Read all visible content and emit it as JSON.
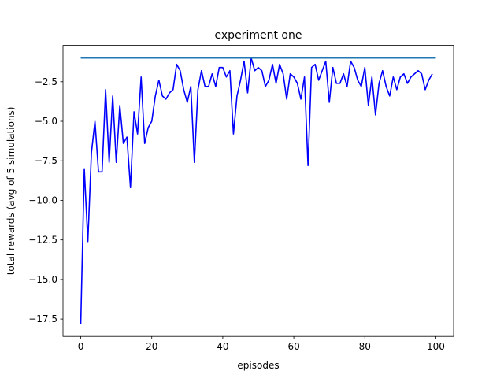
{
  "chart_data": {
    "type": "line",
    "title": "experiment one",
    "xlabel": "episodes",
    "ylabel": "total rewards (avg of 5 simulations)",
    "xlim": [
      -5,
      105
    ],
    "ylim": [
      -18.6,
      -0.2
    ],
    "xticks": [
      0,
      20,
      40,
      60,
      80,
      100
    ],
    "yticks": [
      -17.5,
      -15.0,
      -12.5,
      -10.0,
      -7.5,
      -5.0,
      -2.5
    ],
    "xtick_labels": [
      "0",
      "20",
      "40",
      "60",
      "80",
      "100"
    ],
    "ytick_labels": [
      "−17.5",
      "−15.0",
      "−12.5",
      "−10.0",
      "−7.5",
      "−5.0",
      "−2.5"
    ],
    "grid": false,
    "series": [
      {
        "color": "#0000ff",
        "x": [
          0,
          1,
          2,
          3,
          4,
          5,
          6,
          7,
          8,
          9,
          10,
          11,
          12,
          13,
          14,
          15,
          16,
          17,
          18,
          19,
          20,
          21,
          22,
          23,
          24,
          25,
          26,
          27,
          28,
          29,
          30,
          31,
          32,
          33,
          34,
          35,
          36,
          37,
          38,
          39,
          40,
          41,
          42,
          43,
          44,
          45,
          46,
          47,
          48,
          49,
          50,
          51,
          52,
          53,
          54,
          55,
          56,
          57,
          58,
          59,
          60,
          61,
          62,
          63,
          64,
          65,
          66,
          67,
          68,
          69,
          70,
          71,
          72,
          73,
          74,
          75,
          76,
          77,
          78,
          79,
          80,
          81,
          82,
          83,
          84,
          85,
          86,
          87,
          88,
          89,
          90,
          91,
          92,
          93,
          94,
          95,
          96,
          97,
          98,
          99
        ],
        "y": [
          -17.8,
          -8.0,
          -12.6,
          -7.0,
          -5.0,
          -8.2,
          -8.2,
          -3.0,
          -7.6,
          -3.4,
          -7.6,
          -4.0,
          -6.4,
          -6.0,
          -9.2,
          -4.4,
          -5.8,
          -2.2,
          -6.4,
          -5.4,
          -5.0,
          -3.4,
          -2.4,
          -3.4,
          -3.6,
          -3.2,
          -3.0,
          -1.4,
          -1.8,
          -3.0,
          -3.8,
          -2.8,
          -7.6,
          -3.0,
          -1.8,
          -2.8,
          -2.8,
          -2.0,
          -2.8,
          -1.6,
          -1.6,
          -2.2,
          -1.8,
          -5.8,
          -3.4,
          -2.4,
          -1.2,
          -3.2,
          -1.0,
          -1.8,
          -1.6,
          -1.8,
          -2.8,
          -2.4,
          -1.4,
          -2.6,
          -1.4,
          -2.0,
          -3.6,
          -2.0,
          -2.2,
          -2.6,
          -3.6,
          -2.2,
          -7.8,
          -1.6,
          -1.4,
          -2.4,
          -1.8,
          -1.2,
          -3.8,
          -1.6,
          -2.6,
          -2.6,
          -2.0,
          -2.8,
          -1.2,
          -1.6,
          -2.4,
          -2.8,
          -1.6,
          -4.0,
          -2.2,
          -4.6,
          -2.6,
          -1.8,
          -2.8,
          -3.4,
          -2.2,
          -3.0,
          -2.2,
          -2.0,
          -2.6,
          -2.2,
          -2.0,
          -1.8,
          -2.0,
          -3.0,
          -2.4,
          -2.0
        ]
      },
      {
        "color": "#1f77b4",
        "x": [
          0,
          100
        ],
        "y": [
          -1.0,
          -1.0
        ]
      }
    ]
  }
}
